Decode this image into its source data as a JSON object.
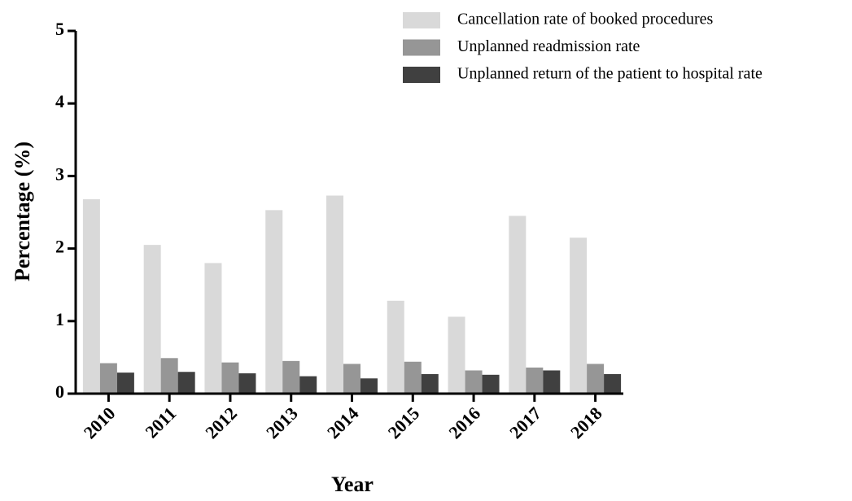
{
  "chart_data": {
    "type": "bar",
    "categories": [
      "2010",
      "2011",
      "2012",
      "2013",
      "2014",
      "2015",
      "2016",
      "2017",
      "2018"
    ],
    "series": [
      {
        "name": "Cancellation rate of booked procedures",
        "color": "#d9d9d9",
        "values": [
          2.68,
          2.05,
          1.8,
          2.53,
          2.73,
          1.28,
          1.06,
          2.45,
          2.15
        ]
      },
      {
        "name": "Unplanned readmission rate",
        "color": "#969696",
        "values": [
          0.42,
          0.49,
          0.43,
          0.45,
          0.41,
          0.44,
          0.32,
          0.36,
          0.41
        ]
      },
      {
        "name": "Unplanned return of the patient to hospital rate",
        "color": "#404040",
        "values": [
          0.29,
          0.3,
          0.28,
          0.24,
          0.21,
          0.27,
          0.26,
          0.32,
          0.27
        ]
      }
    ],
    "x_label": "Year",
    "y_label": "Percentage (%)",
    "ylim": [
      0,
      5
    ],
    "yticks": [
      0,
      1,
      2,
      3,
      4,
      5
    ],
    "legend": "top-right"
  }
}
